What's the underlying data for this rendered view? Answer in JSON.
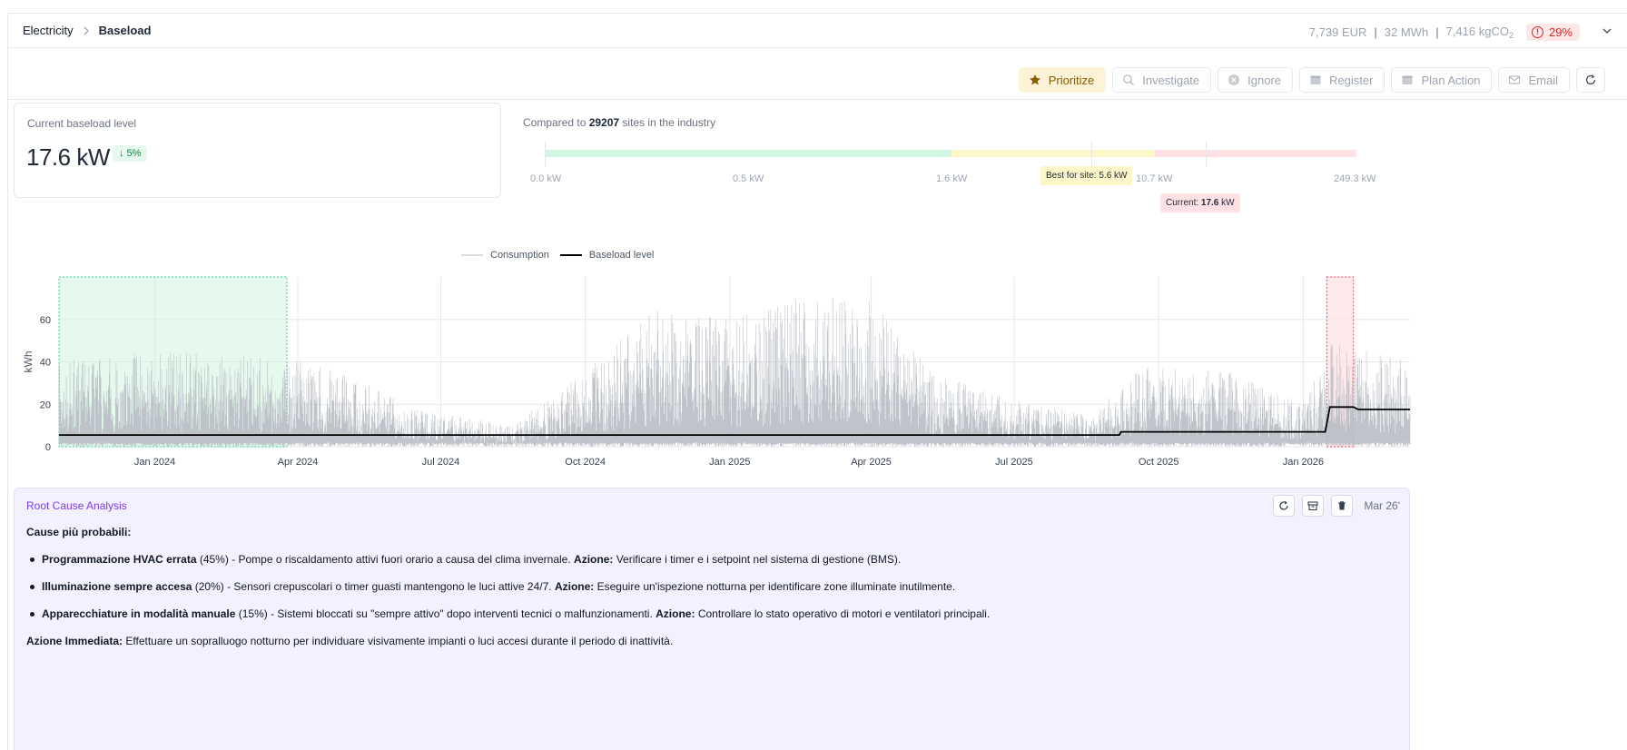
{
  "breadcrumb": {
    "root": "Electricity",
    "separator": ">",
    "current": "Baseload"
  },
  "header_stats": {
    "cost": "7,739 EUR",
    "energy": "32 MWh",
    "emissions": "7,416 kgCO",
    "emissions_sub": "2",
    "severity": "29%"
  },
  "toolbar": {
    "prioritize": "Prioritize",
    "investigate": "Investigate",
    "ignore": "Ignore",
    "register": "Register",
    "plan_action": "Plan Action",
    "email": "Email"
  },
  "baseload_card": {
    "label": "Current baseload level",
    "value": "17.6 kW",
    "delta": "↓ 5%"
  },
  "industry": {
    "prefix": "Compared to ",
    "count": "29207",
    "suffix": " sites in the industry",
    "scale_labels": [
      "0.0 kW",
      "0.5 kW",
      "1.6 kW",
      "10.7 kW",
      "249.3 kW"
    ],
    "best_tip": "Best for site: 5.6 kW",
    "current_prefix": "Current: ",
    "current_value": "17.6",
    "current_unit": " kW",
    "zone_colors": {
      "good": "#d3f5e3",
      "mid": "#fdf6c8",
      "bad": "#fde1e4"
    }
  },
  "chart_data": {
    "type": "line",
    "legend": [
      "Consumption",
      "Baseload level"
    ],
    "ylabel": "kWh",
    "ylim": [
      0,
      80
    ],
    "yticks": [
      0,
      20,
      40,
      60
    ],
    "x_range": [
      "2023-11-01",
      "2026-03-10"
    ],
    "xticks": [
      {
        "date": "2024-01-01",
        "label": "Jan 2024"
      },
      {
        "date": "2024-04-01",
        "label": "Apr 2024"
      },
      {
        "date": "2024-07-01",
        "label": "Jul 2024"
      },
      {
        "date": "2024-10-01",
        "label": "Oct 2024"
      },
      {
        "date": "2025-01-01",
        "label": "Jan 2025"
      },
      {
        "date": "2025-04-01",
        "label": "Apr 2025"
      },
      {
        "date": "2025-07-01",
        "label": "Jul 2025"
      },
      {
        "date": "2025-10-01",
        "label": "Oct 2025"
      },
      {
        "date": "2026-01-01",
        "label": "Jan 2026"
      }
    ],
    "highlight_reference": [
      "2023-11-01",
      "2024-03-25"
    ],
    "highlight_anomaly": [
      "2026-01-16",
      "2026-02-02"
    ],
    "series": [
      {
        "name": "Consumption",
        "approximate_peak_envelope": [
          [
            "2023-11-01",
            40
          ],
          [
            "2024-01-01",
            45
          ],
          [
            "2024-03-25",
            42
          ],
          [
            "2024-05-01",
            35
          ],
          [
            "2024-06-15",
            18
          ],
          [
            "2024-08-15",
            10
          ],
          [
            "2024-09-20",
            30
          ],
          [
            "2024-11-15",
            65
          ],
          [
            "2025-01-01",
            60
          ],
          [
            "2025-02-15",
            70
          ],
          [
            "2025-04-01",
            70
          ],
          [
            "2025-05-10",
            35
          ],
          [
            "2025-07-01",
            22
          ],
          [
            "2025-08-20",
            15
          ],
          [
            "2025-09-20",
            38
          ],
          [
            "2025-11-15",
            35
          ],
          [
            "2026-01-01",
            20
          ],
          [
            "2026-01-20",
            50
          ],
          [
            "2026-03-10",
            40
          ]
        ]
      },
      {
        "name": "Baseload level",
        "values": [
          [
            "2023-11-01",
            5.5
          ],
          [
            "2025-09-06",
            5.5
          ],
          [
            "2025-09-07",
            7.0
          ],
          [
            "2026-01-15",
            7.0
          ],
          [
            "2026-01-18",
            18.7
          ],
          [
            "2026-02-02",
            18.7
          ],
          [
            "2026-02-05",
            17.6
          ],
          [
            "2026-03-10",
            17.6
          ]
        ]
      }
    ]
  },
  "rca": {
    "title": "Root Cause Analysis",
    "date": "Mar 26'",
    "heading": "Cause più probabili:",
    "items": [
      {
        "title": "Programmazione HVAC errata",
        "pct": " (45%)",
        "text": " - Pompe o riscaldamento attivi fuori orario a causa del clima invernale. ",
        "action_label": "Azione:",
        "action": " Verificare i timer e i setpoint nel sistema di gestione (BMS)."
      },
      {
        "title": "Illuminazione sempre accesa",
        "pct": " (20%)",
        "text": " - Sensori crepuscolari o timer guasti mantengono le luci attive 24/7. ",
        "action_label": "Azione:",
        "action": " Eseguire un'ispezione notturna per identificare zone illuminate inutilmente."
      },
      {
        "title": "Apparecchiature in modalità manuale",
        "pct": " (15%)",
        "text": " - Sistemi bloccati su \"sempre attivo\" dopo interventi tecnici o malfunzionamenti. ",
        "action_label": "Azione:",
        "action": " Controllare lo stato operativo di motori e ventilatori principali."
      }
    ],
    "immediate_label": "Azione Immediata:",
    "immediate_text": " Effettuare un sopralluogo notturno per individuare visivamente impianti o luci accesi durante il periodo di inattività."
  }
}
